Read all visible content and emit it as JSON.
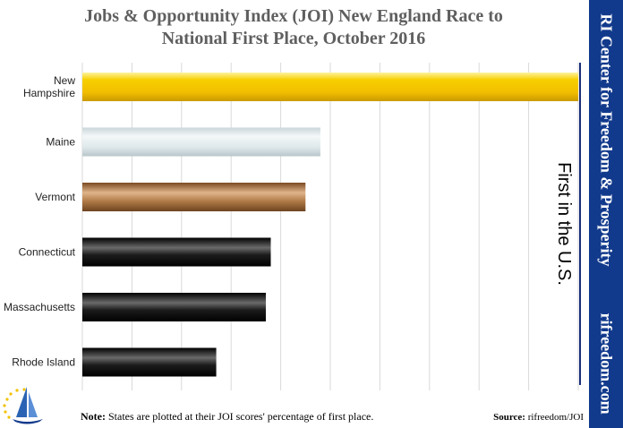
{
  "title_line1": "Jobs & Opportunity Index (JOI) New England Race to",
  "title_line2": "National First Place, October 2016",
  "chart_data": {
    "type": "bar",
    "orientation": "horizontal",
    "categories": [
      "New Hampshire",
      "Maine",
      "Vermont",
      "Connecticut",
      "Massachusetts",
      "Rhode Island"
    ],
    "values": [
      100,
      48,
      45,
      38,
      37,
      27
    ],
    "xlim": [
      0,
      100
    ],
    "grid": true,
    "colors": [
      "#f2c200",
      "#dce8ec",
      "#a06a38",
      "#1a1a1a",
      "#1a1a1a",
      "#1a1a1a"
    ],
    "annotation": "First in the U.S."
  },
  "sidebar": {
    "org": "RI Center for Freedom & Prosperity",
    "url": "rifreedom.com",
    "color": "#123a8c"
  },
  "note": {
    "label": "Note:",
    "text": "States are plotted at their JOI scores' percentage of first place."
  },
  "source": {
    "label": "Source:",
    "text": "rifreedom/JOI"
  }
}
